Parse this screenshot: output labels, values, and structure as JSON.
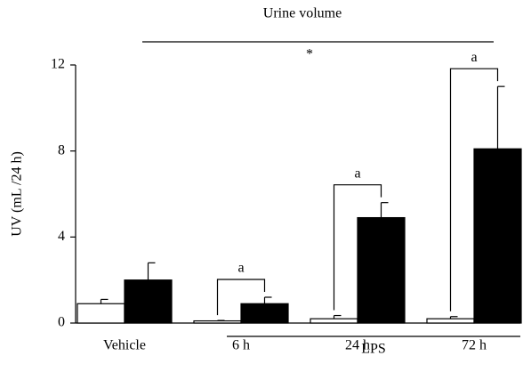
{
  "chart_data": {
    "type": "bar",
    "title": "Urine volume",
    "title_marker": "*",
    "ylabel": "UV (mL /24 h)",
    "categories": [
      "Vehicle",
      "6 h",
      "24 h",
      "72 h"
    ],
    "group_label": "LPS",
    "series": [
      {
        "color": "#ffffff",
        "values": [
          0.9,
          0.1,
          0.2,
          0.2
        ],
        "errors": [
          0.2,
          0.02,
          0.15,
          0.1
        ]
      },
      {
        "color": "#000000",
        "values": [
          2.0,
          0.9,
          4.9,
          8.1
        ],
        "errors": [
          0.8,
          0.3,
          0.7,
          2.9
        ]
      }
    ],
    "annotations": [
      {
        "category": 1,
        "text": "a"
      },
      {
        "category": 2,
        "text": "a"
      },
      {
        "category": 3,
        "text": "a"
      }
    ],
    "ylim": [
      0,
      12
    ],
    "yticks": [
      0,
      4,
      8,
      12
    ]
  }
}
